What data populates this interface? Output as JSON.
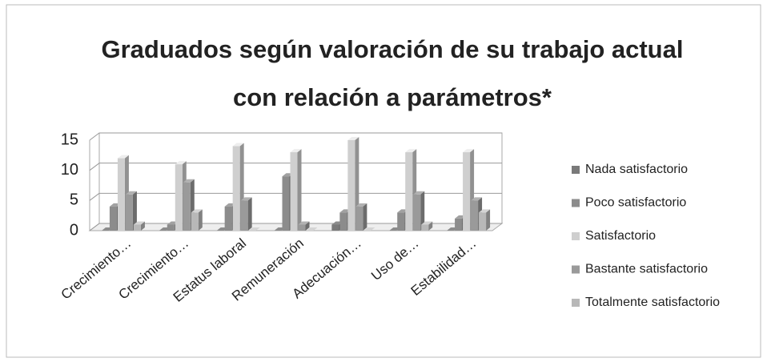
{
  "chart_data": {
    "type": "bar3d",
    "title": [
      "Graduados según valoración de su trabajo actual",
      "con relación a parámetros*"
    ],
    "categories": [
      "Crecimiento…",
      "Crecimiento…",
      "Estatus laboral",
      "Remuneración",
      "Adecuación…",
      "Uso de…",
      "Estabilidad…"
    ],
    "series": [
      {
        "name": "Nada satisfactorio",
        "color": "#7a7a7a",
        "values": [
          0,
          0,
          0,
          0,
          1,
          0,
          0
        ]
      },
      {
        "name": "Poco satisfactorio",
        "color": "#8c8c8c",
        "values": [
          4,
          1,
          4,
          9,
          3,
          3,
          2
        ]
      },
      {
        "name": "Satisfactorio",
        "color": "#cfcfcf",
        "values": [
          12,
          11,
          14,
          13,
          15,
          13,
          13
        ]
      },
      {
        "name": "Bastante satisfactorio",
        "color": "#9a9a9a",
        "values": [
          6,
          8,
          5,
          1,
          4,
          6,
          5
        ]
      },
      {
        "name": "Totalmente satisfactorio",
        "color": "#b8b8b8",
        "values": [
          1,
          3,
          0,
          0,
          0,
          1,
          3
        ]
      }
    ],
    "ylim": [
      0,
      15
    ],
    "yticks": [
      0,
      5,
      10,
      15
    ],
    "grid": true,
    "legend": "right"
  }
}
